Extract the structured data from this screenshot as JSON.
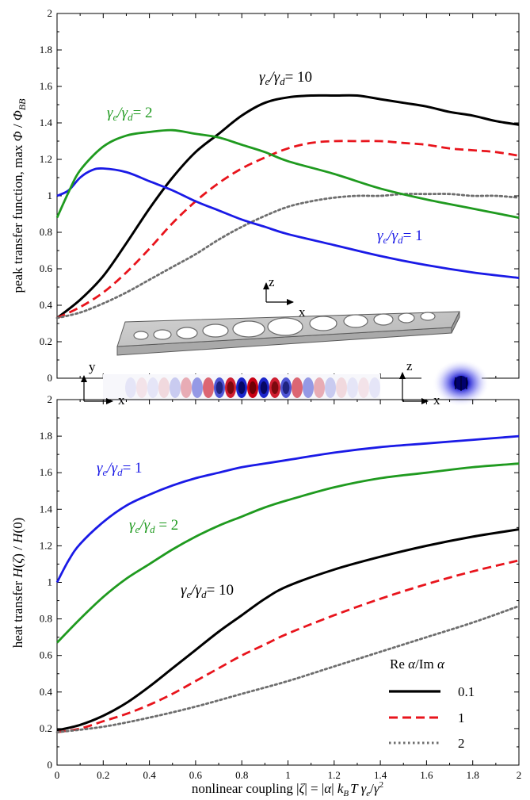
{
  "colors": {
    "black": "#000000",
    "red": "#e8141c",
    "gray": "#6e6e6e",
    "blue": "#1a1ae6",
    "green": "#1f9a1f"
  },
  "chart_data": [
    {
      "type": "line",
      "ylabel": "peak transfer function, max Φ / Φ_BB",
      "ylabel_parts": {
        "prefix": "peak transfer function, max ",
        "phi": "Φ",
        "slash": " / ",
        "phi_bb": "Φ",
        "bb": "BB"
      },
      "xlim": [
        0,
        2
      ],
      "ylim": [
        0,
        2
      ],
      "yticks": [
        "0",
        "0.2",
        "0.4",
        "0.6",
        "0.8",
        "1",
        "1.2",
        "1.4",
        "1.6",
        "1.8",
        "2"
      ],
      "ytick_values": [
        0,
        0.2,
        0.4,
        0.6,
        0.8,
        1,
        1.2,
        1.4,
        1.6,
        1.8,
        2
      ],
      "xtick_values": [
        0,
        0.2,
        0.4,
        0.6,
        0.8,
        1,
        1.2,
        1.4,
        1.6,
        1.8,
        2
      ],
      "series": [
        {
          "color_key": "black",
          "dash": "solid",
          "x": [
            0,
            0.1,
            0.2,
            0.3,
            0.4,
            0.5,
            0.6,
            0.7,
            0.8,
            0.9,
            1.0,
            1.1,
            1.2,
            1.3,
            1.4,
            1.5,
            1.6,
            1.7,
            1.8,
            1.9,
            2.0
          ],
          "y": [
            0.33,
            0.43,
            0.56,
            0.74,
            0.93,
            1.1,
            1.24,
            1.34,
            1.44,
            1.51,
            1.54,
            1.55,
            1.55,
            1.55,
            1.53,
            1.51,
            1.49,
            1.46,
            1.44,
            1.41,
            1.39
          ]
        },
        {
          "color_key": "red",
          "dash": "dashed",
          "x": [
            0,
            0.1,
            0.2,
            0.3,
            0.4,
            0.5,
            0.6,
            0.7,
            0.8,
            0.9,
            1.0,
            1.1,
            1.2,
            1.3,
            1.4,
            1.5,
            1.6,
            1.7,
            1.8,
            1.9,
            2.0
          ],
          "y": [
            0.33,
            0.39,
            0.47,
            0.58,
            0.71,
            0.85,
            0.97,
            1.07,
            1.15,
            1.21,
            1.26,
            1.29,
            1.3,
            1.3,
            1.3,
            1.29,
            1.28,
            1.26,
            1.25,
            1.24,
            1.22
          ]
        },
        {
          "color_key": "gray",
          "dash": "dotted",
          "x": [
            0,
            0.1,
            0.2,
            0.3,
            0.4,
            0.5,
            0.6,
            0.7,
            0.8,
            0.9,
            1.0,
            1.1,
            1.2,
            1.3,
            1.4,
            1.5,
            1.6,
            1.7,
            1.8,
            1.9,
            2.0
          ],
          "y": [
            0.33,
            0.36,
            0.41,
            0.47,
            0.54,
            0.61,
            0.68,
            0.76,
            0.83,
            0.89,
            0.94,
            0.97,
            0.99,
            1.0,
            1.0,
            1.01,
            1.01,
            1.01,
            1.0,
            1.0,
            0.99
          ]
        },
        {
          "color_key": "blue",
          "dash": "solid",
          "x": [
            0,
            0.05,
            0.1,
            0.15,
            0.2,
            0.3,
            0.4,
            0.5,
            0.6,
            0.7,
            0.8,
            0.9,
            1.0,
            1.2,
            1.4,
            1.6,
            1.8,
            2.0
          ],
          "y": [
            1.0,
            1.03,
            1.1,
            1.14,
            1.15,
            1.13,
            1.08,
            1.03,
            0.97,
            0.92,
            0.87,
            0.83,
            0.79,
            0.73,
            0.67,
            0.62,
            0.58,
            0.55
          ]
        },
        {
          "color_key": "green",
          "dash": "solid",
          "x": [
            0,
            0.05,
            0.1,
            0.2,
            0.3,
            0.4,
            0.5,
            0.6,
            0.7,
            0.8,
            0.9,
            1.0,
            1.2,
            1.4,
            1.6,
            1.8,
            2.0
          ],
          "y": [
            0.88,
            1.02,
            1.14,
            1.27,
            1.33,
            1.35,
            1.36,
            1.34,
            1.32,
            1.28,
            1.24,
            1.19,
            1.12,
            1.04,
            0.98,
            0.93,
            0.88
          ]
        }
      ],
      "annotations": [
        {
          "color_key": "black",
          "num": "γ",
          "num_sub": "e",
          "den": "γ",
          "den_sub": "d",
          "eq": "= 10"
        },
        {
          "color_key": "green",
          "num": "γ",
          "num_sub": "e",
          "den": "γ",
          "den_sub": "d",
          "eq": "= 2"
        },
        {
          "color_key": "blue",
          "num": "γ",
          "num_sub": "e",
          "den": "γ",
          "den_sub": "d",
          "eq": "= 1"
        }
      ]
    },
    {
      "type": "line",
      "ylabel": "heat transfer H(ζ) / H(0)",
      "ylabel_parts": {
        "prefix": "heat transfer ",
        "h1": "H",
        "arg1": "(",
        "zeta": "ζ",
        "arg1c": ") / ",
        "h2": "H",
        "arg2": "(0)"
      },
      "xlabel": "nonlinear coupling |ζ| = |α| k_B T γ_e/γ²",
      "xlabel_parts": {
        "prefix": "nonlinear coupling |",
        "zeta": "ζ",
        "mid": "| = |",
        "alpha": "α",
        "mid2": "| ",
        "k": "k",
        "ksub": "B",
        "T": "T",
        "ge": " γ",
        "gesub": "e",
        "slash": "/",
        "g": "γ",
        "sup": "2"
      },
      "xlim": [
        0,
        2
      ],
      "ylim": [
        0,
        2
      ],
      "xticks": [
        "0",
        "0.2",
        "0.4",
        "0.6",
        "0.8",
        "1",
        "1.2",
        "1.4",
        "1.6",
        "1.8",
        "2"
      ],
      "xtick_values": [
        0,
        0.2,
        0.4,
        0.6,
        0.8,
        1,
        1.2,
        1.4,
        1.6,
        1.8,
        2
      ],
      "yticks": [
        "0",
        "0.2",
        "0.4",
        "0.6",
        "0.8",
        "1",
        "1.2",
        "1.4",
        "1.6",
        "1.8",
        "2"
      ],
      "ytick_values": [
        0,
        0.2,
        0.4,
        0.6,
        0.8,
        1,
        1.2,
        1.4,
        1.6,
        1.8,
        2
      ],
      "series": [
        {
          "color_key": "blue",
          "dash": "solid",
          "x": [
            0,
            0.05,
            0.1,
            0.2,
            0.3,
            0.4,
            0.5,
            0.6,
            0.7,
            0.8,
            0.9,
            1.0,
            1.2,
            1.4,
            1.6,
            1.8,
            2.0
          ],
          "y": [
            1.0,
            1.12,
            1.21,
            1.33,
            1.42,
            1.48,
            1.53,
            1.57,
            1.6,
            1.63,
            1.65,
            1.67,
            1.71,
            1.74,
            1.76,
            1.78,
            1.8
          ]
        },
        {
          "color_key": "green",
          "dash": "solid",
          "x": [
            0,
            0.1,
            0.2,
            0.3,
            0.4,
            0.5,
            0.6,
            0.7,
            0.8,
            0.9,
            1.0,
            1.2,
            1.4,
            1.6,
            1.8,
            2.0
          ],
          "y": [
            0.67,
            0.8,
            0.92,
            1.02,
            1.1,
            1.18,
            1.25,
            1.31,
            1.36,
            1.41,
            1.45,
            1.52,
            1.57,
            1.6,
            1.63,
            1.65
          ]
        },
        {
          "color_key": "black",
          "dash": "solid",
          "x": [
            0,
            0.1,
            0.2,
            0.3,
            0.4,
            0.5,
            0.6,
            0.7,
            0.8,
            0.9,
            1.0,
            1.2,
            1.4,
            1.6,
            1.8,
            2.0
          ],
          "y": [
            0.19,
            0.22,
            0.27,
            0.34,
            0.43,
            0.53,
            0.63,
            0.73,
            0.82,
            0.91,
            0.98,
            1.07,
            1.14,
            1.2,
            1.25,
            1.29
          ]
        },
        {
          "color_key": "red",
          "dash": "dashed",
          "x": [
            0,
            0.1,
            0.2,
            0.3,
            0.4,
            0.5,
            0.6,
            0.7,
            0.8,
            0.9,
            1.0,
            1.2,
            1.4,
            1.6,
            1.8,
            2.0
          ],
          "y": [
            0.18,
            0.2,
            0.24,
            0.28,
            0.33,
            0.39,
            0.46,
            0.53,
            0.6,
            0.66,
            0.72,
            0.82,
            0.91,
            0.99,
            1.06,
            1.12
          ]
        },
        {
          "color_key": "gray",
          "dash": "dotted",
          "x": [
            0,
            0.2,
            0.4,
            0.6,
            0.8,
            1.0,
            1.2,
            1.4,
            1.6,
            1.8,
            2.0
          ],
          "y": [
            0.18,
            0.21,
            0.26,
            0.32,
            0.39,
            0.46,
            0.54,
            0.62,
            0.7,
            0.78,
            0.87
          ]
        }
      ],
      "annotations": [
        {
          "color_key": "blue",
          "num": "γ",
          "num_sub": "e",
          "den": "γ",
          "den_sub": "d",
          "eq": "= 1"
        },
        {
          "color_key": "green",
          "num": "γ",
          "num_sub": "e",
          "den": "γ",
          "den_sub": "d",
          "eq": " = 2"
        },
        {
          "color_key": "black",
          "num": "γ",
          "num_sub": "e",
          "den": "γ",
          "den_sub": "d",
          "eq": "= 10"
        }
      ],
      "legend": {
        "title_prefix": "Re ",
        "title_alpha1": "α",
        "title_mid": "/Im ",
        "title_alpha2": "α",
        "placement": "bottom-right",
        "entries": [
          {
            "label": "0.1",
            "color_key": "black",
            "dash": "solid"
          },
          {
            "label": "1",
            "color_key": "red",
            "dash": "dashed"
          },
          {
            "label": "2",
            "color_key": "gray",
            "dash": "dotted"
          }
        ]
      }
    }
  ],
  "inset": {
    "axis_z": "z",
    "axis_x": "x",
    "axis_y": "y"
  }
}
